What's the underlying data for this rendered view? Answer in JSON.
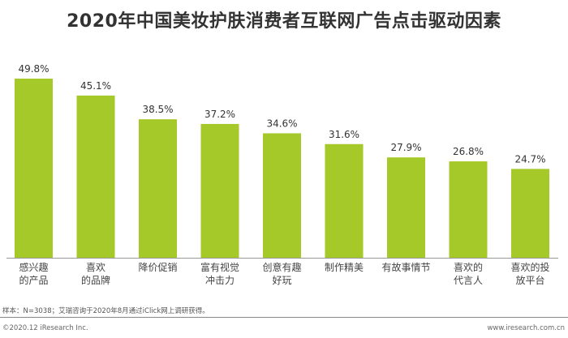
{
  "chart_data": {
    "type": "bar",
    "title": "2020年中国美妆护肤消费者互联网广告点击驱动因素",
    "categories": [
      "感兴趣\n的产品",
      "喜欢\n的品牌",
      "降价促销",
      "富有视觉\n冲击力",
      "创意有趣\n好玩",
      "制作精美",
      "有故事情节",
      "喜欢的\n代言人",
      "喜欢的投\n放平台"
    ],
    "values": [
      49.8,
      45.1,
      38.5,
      37.2,
      34.6,
      31.6,
      27.9,
      26.8,
      24.7
    ],
    "data_labels": [
      "49.8%",
      "45.1%",
      "38.5%",
      "37.2%",
      "34.6%",
      "31.6%",
      "27.9%",
      "26.8%",
      "24.7%"
    ],
    "ylim": [
      0,
      50
    ],
    "grid": false,
    "bar_color": "#a6c92a"
  },
  "footer": {
    "source": "样本：N=3038；艾瑞咨询于2020年8月通过iClick网上调研获得。",
    "copyright": "©2020.12 iResearch Inc.",
    "website": "www.iresearch.com.cn"
  }
}
